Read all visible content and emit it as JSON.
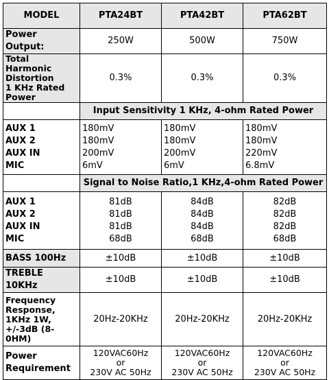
{
  "header": {
    "model_label": "MODEL",
    "models": [
      "PTA24BT",
      "PTA42BT",
      "PTA62BT"
    ]
  },
  "power_output": {
    "label": "Power Output:",
    "values": [
      "250W",
      "500W",
      "750W"
    ]
  },
  "thd": {
    "label_lines": [
      "Total Harmonic",
      "Distortion",
      "1 KHz Rated",
      "Power"
    ],
    "values": [
      "0.3%",
      "0.3%",
      "0.3%"
    ]
  },
  "input_sensitivity": {
    "title": "Input Sensitivity 1 KHz, 4-ohm Rated Power",
    "labels": [
      "AUX 1",
      "AUX 2",
      "AUX  IN",
      "MIC"
    ],
    "columns": [
      [
        "180mV",
        "180mV",
        "200mV",
        "6mV"
      ],
      [
        "180mV",
        "180mV",
        "200mV",
        "6mV"
      ],
      [
        "180mV",
        "180mV",
        "220mV",
        "6.8mV"
      ]
    ]
  },
  "snr": {
    "title": "Signal to Noise Ratio,1 KHz,4-ohm Rated Power",
    "labels": [
      "AUX 1",
      "AUX 2",
      "AUX  IN",
      "MIC"
    ],
    "columns": [
      [
        "81dB",
        "81dB",
        "81dB",
        "68dB"
      ],
      [
        "84dB",
        "84dB",
        "84dB",
        "68dB"
      ],
      [
        "82dB",
        "82dB",
        "82dB",
        "68dB"
      ]
    ]
  },
  "bass": {
    "label": "BASS  100Hz",
    "values": [
      "±10dB",
      "±10dB",
      "±10dB"
    ]
  },
  "treble": {
    "label": "TREBLE 10KHz",
    "values": [
      "±10dB",
      "±10dB",
      "±10dB"
    ]
  },
  "frequency_response": {
    "label_lines": [
      "Frequency",
      "Response,",
      "1KHz 1W,",
      "+/-3dB (8-0HM)"
    ],
    "values": [
      "20Hz-20KHz",
      "20Hz-20KHz",
      "20Hz-20KHz"
    ]
  },
  "power_requirement": {
    "label_lines": [
      "Power",
      "Requirement"
    ],
    "values": [
      [
        "120VAC60Hz",
        "or",
        "230V AC 50Hz"
      ],
      [
        "120VAC60Hz",
        "or",
        "230V AC 50Hz"
      ],
      [
        "120VAC60Hz",
        "or",
        "230V AC 50Hz"
      ]
    ]
  }
}
